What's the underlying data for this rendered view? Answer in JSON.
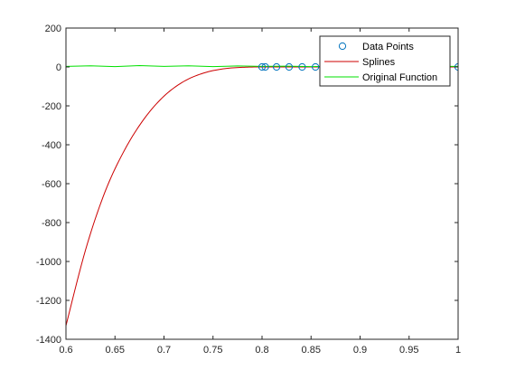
{
  "chart_data": {
    "type": "line",
    "title": "",
    "xlabel": "",
    "ylabel": "",
    "xlim": [
      0.6,
      1.0
    ],
    "ylim": [
      -1400,
      200
    ],
    "x_ticks": [
      0.6,
      0.65,
      0.7,
      0.75,
      0.8,
      0.85,
      0.9,
      0.95,
      1.0
    ],
    "x_tick_labels": [
      "0.6",
      "0.65",
      "0.7",
      "0.75",
      "0.8",
      "0.85",
      "0.9",
      "0.95",
      "1"
    ],
    "y_ticks": [
      200,
      0,
      -200,
      -400,
      -600,
      -800,
      -1000,
      -1200,
      -1400
    ],
    "y_tick_labels": [
      "200",
      "0",
      "-200",
      "-400",
      "-600",
      "-800",
      "-1000",
      "-1200",
      "-1400"
    ],
    "grid": false,
    "legend_position": "top-right",
    "series": [
      {
        "name": "Data Points",
        "kind": "markers",
        "marker": "circle",
        "color": "#0072bd",
        "x": [
          0.8,
          0.8033,
          0.8148,
          0.8276,
          0.8409,
          0.8545,
          0.8683,
          0.8821,
          0.8958,
          0.9097,
          0.9234,
          0.9372,
          0.951,
          0.9648,
          0.9786,
          1.0
        ],
        "y": [
          0,
          0,
          0,
          0,
          0,
          0,
          0,
          0,
          0,
          0,
          0,
          0,
          0,
          0,
          0,
          0
        ]
      },
      {
        "name": "Splines",
        "kind": "line",
        "color": "#cc0000",
        "x": [
          0.6,
          0.62,
          0.64,
          0.66,
          0.68,
          0.7,
          0.72,
          0.74,
          0.76,
          0.78,
          0.8,
          0.85,
          0.9,
          0.95,
          1.0
        ],
        "y": [
          -1330,
          -940,
          -640,
          -425,
          -265,
          -150,
          -75,
          -32,
          -10,
          -2,
          0,
          0,
          0,
          0,
          0
        ]
      },
      {
        "name": "Original Function",
        "kind": "line",
        "color": "#00e000",
        "x": [
          0.6,
          0.625,
          0.65,
          0.675,
          0.7,
          0.725,
          0.75,
          0.775,
          0.8,
          0.825,
          0.85,
          0.875,
          0.9,
          0.925,
          0.95,
          0.975,
          1.0
        ],
        "y": [
          3,
          6,
          2,
          7,
          3,
          6,
          2,
          5,
          3,
          4,
          2,
          4,
          3,
          4,
          2,
          3,
          3
        ]
      }
    ]
  }
}
